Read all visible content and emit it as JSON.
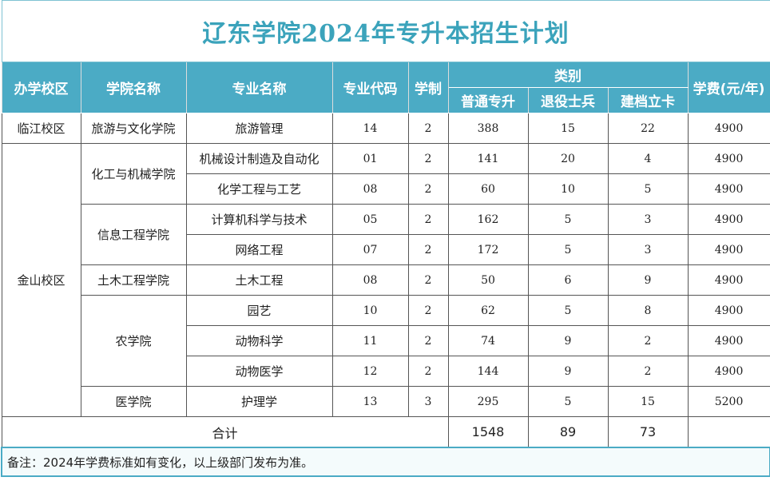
{
  "title": "辽东学院2024年专升本招生计划",
  "header": {
    "campus": "办学校区",
    "college": "学院名称",
    "major": "专业名称",
    "code": "专业代码",
    "years": "学制",
    "category": "类别",
    "regular": "普通专升",
    "veteran": "退役士兵",
    "poverty": "建档立卡",
    "fee": "学费(元/年)"
  },
  "campuses": [
    {
      "name": "临江校区",
      "colleges": [
        {
          "name": "旅游与文化学院",
          "majors": [
            {
              "name": "旅游管理",
              "code": "14",
              "years": 2,
              "regular": 388,
              "veteran": 15,
              "poverty": 22,
              "fee": 4900
            }
          ]
        }
      ]
    },
    {
      "name": "金山校区",
      "colleges": [
        {
          "name": "化工与机械学院",
          "majors": [
            {
              "name": "机械设计制造及自动化",
              "code": "01",
              "years": 2,
              "regular": 141,
              "veteran": 20,
              "poverty": 4,
              "fee": 4900
            },
            {
              "name": "化学工程与工艺",
              "code": "08",
              "years": 2,
              "regular": 60,
              "veteran": 10,
              "poverty": 5,
              "fee": 4900
            }
          ]
        },
        {
          "name": "信息工程学院",
          "majors": [
            {
              "name": "计算机科学与技术",
              "code": "05",
              "years": 2,
              "regular": 162,
              "veteran": 5,
              "poverty": 3,
              "fee": 4900
            },
            {
              "name": "网络工程",
              "code": "07",
              "years": 2,
              "regular": 172,
              "veteran": 5,
              "poverty": 3,
              "fee": 4900
            }
          ]
        },
        {
          "name": "土木工程学院",
          "majors": [
            {
              "name": "土木工程",
              "code": "08",
              "years": 2,
              "regular": 50,
              "veteran": 6,
              "poverty": 9,
              "fee": 4900
            }
          ]
        },
        {
          "name": "农学院",
          "majors": [
            {
              "name": "园艺",
              "code": "10",
              "years": 2,
              "regular": 62,
              "veteran": 5,
              "poverty": 8,
              "fee": 4900
            },
            {
              "name": "动物科学",
              "code": "11",
              "years": 2,
              "regular": 74,
              "veteran": 9,
              "poverty": 2,
              "fee": 4900
            },
            {
              "name": "动物医学",
              "code": "12",
              "years": 2,
              "regular": 144,
              "veteran": 9,
              "poverty": 2,
              "fee": 4900
            }
          ]
        },
        {
          "name": "医学院",
          "majors": [
            {
              "name": "护理学",
              "code": "13",
              "years": 3,
              "regular": 295,
              "veteran": 5,
              "poverty": 15,
              "fee": 5200
            }
          ]
        }
      ]
    }
  ],
  "total": {
    "label": "合计",
    "regular": 1548,
    "veteran": 89,
    "poverty": 73
  },
  "note": "备注：2024年学费标准如有变化，以上级部门发布为准。"
}
